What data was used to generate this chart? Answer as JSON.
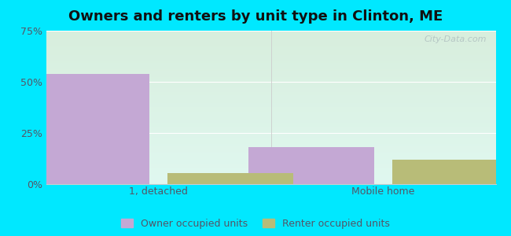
{
  "title": "Owners and renters by unit type in Clinton, ME",
  "categories": [
    "1, detached",
    "Mobile home"
  ],
  "owner_values": [
    54.0,
    18.0
  ],
  "renter_values": [
    5.5,
    12.0
  ],
  "owner_color": "#c4a8d4",
  "renter_color": "#b8bc78",
  "ylim": [
    0,
    75
  ],
  "yticks": [
    0,
    25,
    50,
    75
  ],
  "ytick_labels": [
    "0%",
    "25%",
    "50%",
    "75%"
  ],
  "bar_width": 0.28,
  "group_positions": [
    0.25,
    0.75
  ],
  "bg_top_left": "#ddf0d8",
  "bg_top_right": "#cceedd",
  "bg_bottom_left": "#e8f8e8",
  "bg_bottom_right": "#d8f8f0",
  "outer_bg": "#00e8ff",
  "legend_owner": "Owner occupied units",
  "legend_renter": "Renter occupied units",
  "watermark": "City-Data.com",
  "title_fontsize": 13,
  "tick_fontsize": 9,
  "legend_fontsize": 9,
  "grid_color": "#e0e8d8",
  "spine_color": "#cccccc",
  "text_color": "#555566"
}
